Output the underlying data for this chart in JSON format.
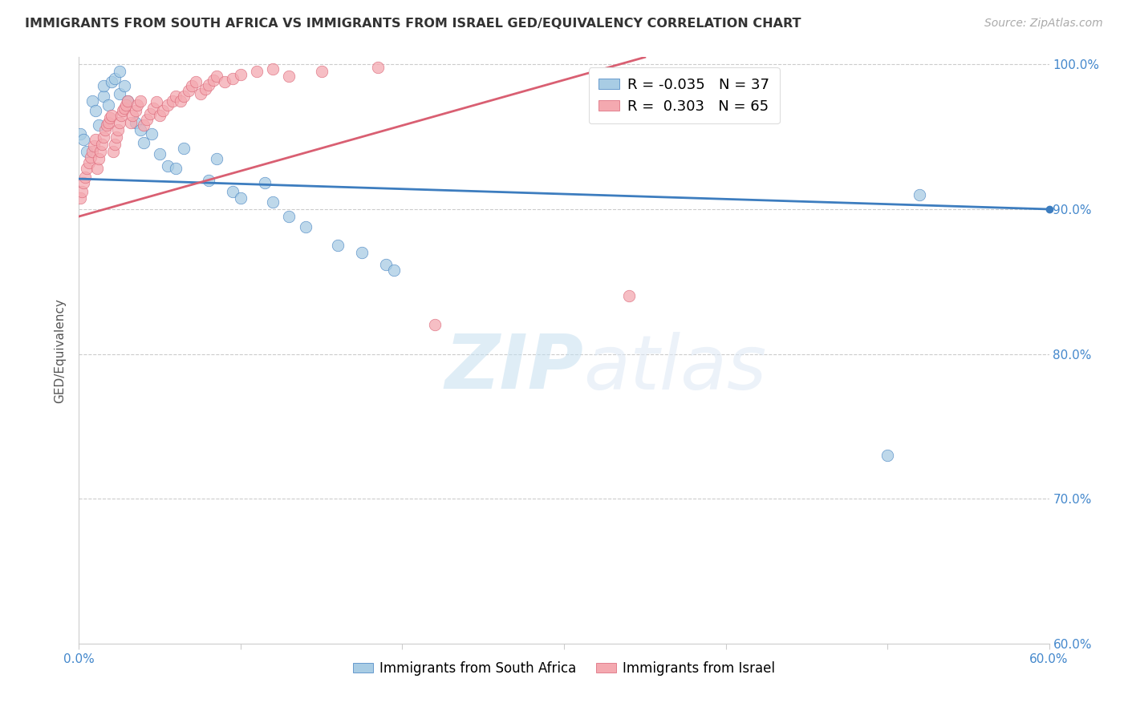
{
  "title": "IMMIGRANTS FROM SOUTH AFRICA VS IMMIGRANTS FROM ISRAEL GED/EQUIVALENCY CORRELATION CHART",
  "source": "Source: ZipAtlas.com",
  "ylabel": "GED/Equivalency",
  "xlim": [
    0.0,
    0.6
  ],
  "ylim": [
    0.6,
    1.005
  ],
  "blue_color": "#a8cce4",
  "pink_color": "#f4a9b0",
  "blue_line_color": "#3d7dbf",
  "pink_line_color": "#d95f72",
  "watermark_zip": "ZIP",
  "watermark_atlas": "atlas",
  "r_sa": -0.035,
  "n_sa": 37,
  "r_isr": 0.303,
  "n_isr": 65,
  "south_africa_x": [
    0.001,
    0.003,
    0.005,
    0.008,
    0.01,
    0.012,
    0.015,
    0.015,
    0.018,
    0.02,
    0.022,
    0.025,
    0.025,
    0.028,
    0.03,
    0.035,
    0.038,
    0.04,
    0.045,
    0.05,
    0.055,
    0.06,
    0.065,
    0.08,
    0.085,
    0.095,
    0.1,
    0.115,
    0.12,
    0.13,
    0.14,
    0.16,
    0.175,
    0.19,
    0.195,
    0.5,
    0.52
  ],
  "south_africa_y": [
    0.952,
    0.948,
    0.94,
    0.975,
    0.968,
    0.958,
    0.978,
    0.985,
    0.972,
    0.988,
    0.99,
    0.995,
    0.98,
    0.985,
    0.975,
    0.96,
    0.955,
    0.946,
    0.952,
    0.938,
    0.93,
    0.928,
    0.942,
    0.92,
    0.935,
    0.912,
    0.908,
    0.918,
    0.905,
    0.895,
    0.888,
    0.875,
    0.87,
    0.862,
    0.858,
    0.73,
    0.91
  ],
  "israel_x": [
    0.001,
    0.002,
    0.003,
    0.004,
    0.005,
    0.006,
    0.007,
    0.008,
    0.009,
    0.01,
    0.011,
    0.012,
    0.013,
    0.014,
    0.015,
    0.016,
    0.017,
    0.018,
    0.019,
    0.02,
    0.021,
    0.022,
    0.023,
    0.024,
    0.025,
    0.026,
    0.027,
    0.028,
    0.029,
    0.03,
    0.032,
    0.033,
    0.035,
    0.036,
    0.038,
    0.04,
    0.042,
    0.044,
    0.046,
    0.048,
    0.05,
    0.052,
    0.055,
    0.058,
    0.06,
    0.063,
    0.065,
    0.068,
    0.07,
    0.072,
    0.075,
    0.078,
    0.08,
    0.083,
    0.085,
    0.09,
    0.095,
    0.1,
    0.11,
    0.12,
    0.13,
    0.15,
    0.185,
    0.22,
    0.34
  ],
  "israel_y": [
    0.908,
    0.912,
    0.918,
    0.922,
    0.928,
    0.932,
    0.936,
    0.94,
    0.944,
    0.948,
    0.928,
    0.935,
    0.94,
    0.945,
    0.95,
    0.955,
    0.958,
    0.96,
    0.963,
    0.965,
    0.94,
    0.945,
    0.95,
    0.955,
    0.96,
    0.965,
    0.968,
    0.97,
    0.972,
    0.975,
    0.96,
    0.965,
    0.968,
    0.972,
    0.975,
    0.958,
    0.962,
    0.966,
    0.97,
    0.974,
    0.965,
    0.968,
    0.972,
    0.975,
    0.978,
    0.975,
    0.978,
    0.982,
    0.985,
    0.988,
    0.98,
    0.983,
    0.986,
    0.989,
    0.992,
    0.988,
    0.99,
    0.993,
    0.995,
    0.997,
    0.992,
    0.995,
    0.998,
    0.82,
    0.84
  ]
}
